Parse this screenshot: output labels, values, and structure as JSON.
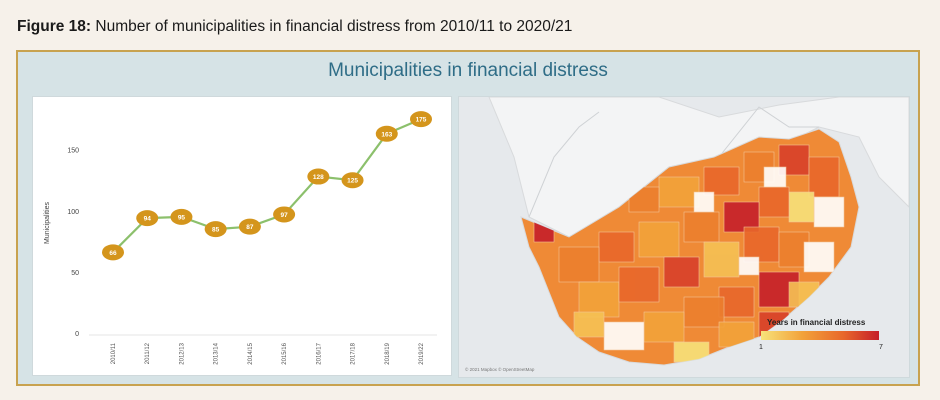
{
  "figure": {
    "label": "Figure 18:",
    "caption": "Number of municipalities in financial distress from 2010/11 to 2020/21"
  },
  "panel": {
    "title": "Municipalities in financial distress",
    "border_color": "#c8a24f",
    "title_color": "#2f6d87"
  },
  "chart_data": [
    {
      "type": "line",
      "x": [
        "2010/11",
        "2011/12",
        "2012/13",
        "2013/14",
        "2014/15",
        "2015/16",
        "2016/17",
        "2017/18",
        "2018/19",
        "2019/22"
      ],
      "series": [
        {
          "values": [
            66,
            94,
            95,
            85,
            87,
            97,
            128,
            125,
            163,
            175
          ]
        }
      ],
      "data_labels": [
        "66",
        "94",
        "95",
        "85",
        "87",
        "97",
        "128",
        "125",
        "163",
        "175"
      ],
      "ylabel": "Municipalities",
      "ylim": [
        0,
        180
      ],
      "yticks": [
        0,
        50,
        100,
        150
      ],
      "grid": false,
      "line_color": "#8cc06c",
      "marker_color": "#d4951c"
    }
  ],
  "map": {
    "legend_title": "Years in financial distress",
    "legend_min": "1",
    "legend_max": "7",
    "scale_colors": [
      "#f7e27a",
      "#f2a23a",
      "#e8672b",
      "#c51f2a"
    ],
    "credit": "© 2021 Mapbox © OpenStreetMap"
  }
}
